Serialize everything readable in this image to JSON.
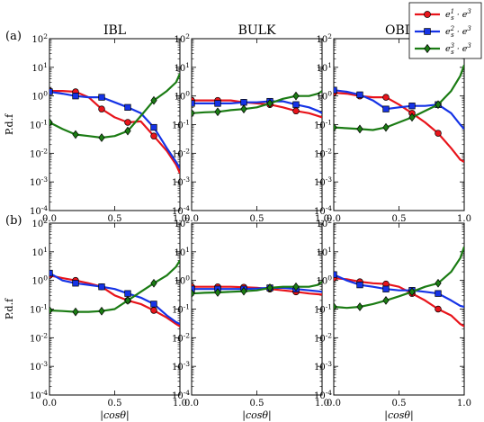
{
  "figure": {
    "row_labels": [
      "(a)",
      "(b)"
    ],
    "xlabel": "|cosθ|",
    "ylabel": "P.d.f",
    "legend": {
      "entries": [
        {
          "label": "e_s^1 · e^3",
          "color": "#e8141b",
          "marker": "circle"
        },
        {
          "label": "e_s^2 · e^3",
          "color": "#1533e6",
          "marker": "square"
        },
        {
          "label": "e_s^3 · e^3",
          "color": "#1b7c14",
          "marker": "diamond"
        }
      ],
      "position": "top-right"
    },
    "x_ticks": [
      "0.0",
      "0.5",
      "1.0"
    ],
    "y_ticks": [
      "10^-4",
      "10^-3",
      "10^-2",
      "10^-1",
      "10^0",
      "10^1",
      "10^2"
    ]
  },
  "chart_data": [
    {
      "type": "line",
      "row": "(a)",
      "title": "IBL",
      "xlim": [
        0,
        1
      ],
      "ylim": [
        0.0001,
        100
      ],
      "yscale": "log",
      "x": [
        0,
        0.1,
        0.2,
        0.3,
        0.4,
        0.5,
        0.6,
        0.7,
        0.8,
        0.9,
        0.97,
        1.0
      ],
      "series": [
        {
          "name": "e_s^1 · e^3",
          "values": [
            1.5,
            1.5,
            1.4,
            0.9,
            0.35,
            0.18,
            0.12,
            0.13,
            0.04,
            0.012,
            0.004,
            0.002
          ]
        },
        {
          "name": "e_s^2 · e^3",
          "values": [
            1.4,
            1.2,
            1.0,
            0.9,
            0.9,
            0.6,
            0.4,
            0.25,
            0.08,
            0.015,
            0.005,
            0.003
          ]
        },
        {
          "name": "e_s^3 · e^3",
          "values": [
            0.12,
            0.07,
            0.045,
            0.04,
            0.035,
            0.04,
            0.06,
            0.2,
            0.7,
            1.5,
            3,
            6
          ]
        }
      ]
    },
    {
      "type": "line",
      "row": "(a)",
      "title": "BULK",
      "xlim": [
        0,
        1
      ],
      "ylim": [
        0.0001,
        100
      ],
      "yscale": "log",
      "x": [
        0,
        0.1,
        0.2,
        0.3,
        0.4,
        0.5,
        0.6,
        0.7,
        0.8,
        0.9,
        0.97,
        1.0
      ],
      "series": [
        {
          "name": "e_s^1 · e^3",
          "values": [
            0.7,
            0.7,
            0.7,
            0.7,
            0.6,
            0.55,
            0.5,
            0.4,
            0.3,
            0.25,
            0.2,
            0.18
          ]
        },
        {
          "name": "e_s^2 · e^3",
          "values": [
            0.55,
            0.55,
            0.55,
            0.55,
            0.6,
            0.6,
            0.65,
            0.65,
            0.5,
            0.4,
            0.3,
            0.25
          ]
        },
        {
          "name": "e_s^3 · e^3",
          "values": [
            0.25,
            0.27,
            0.28,
            0.32,
            0.35,
            0.4,
            0.55,
            0.8,
            1.0,
            1.0,
            1.2,
            1.5
          ]
        }
      ]
    },
    {
      "type": "line",
      "row": "(a)",
      "title": "OBL",
      "xlim": [
        0,
        1
      ],
      "ylim": [
        0.0001,
        100
      ],
      "yscale": "log",
      "x": [
        0,
        0.1,
        0.2,
        0.3,
        0.4,
        0.5,
        0.6,
        0.7,
        0.8,
        0.9,
        0.97,
        1.0
      ],
      "series": [
        {
          "name": "e_s^1 · e^3",
          "values": [
            1.3,
            1.2,
            1.0,
            0.9,
            0.9,
            0.5,
            0.25,
            0.12,
            0.05,
            0.015,
            0.006,
            0.005
          ]
        },
        {
          "name": "e_s^2 · e^3",
          "values": [
            1.6,
            1.4,
            1.1,
            0.7,
            0.35,
            0.4,
            0.45,
            0.45,
            0.5,
            0.25,
            0.1,
            0.07
          ]
        },
        {
          "name": "e_s^3 · e^3",
          "values": [
            0.08,
            0.075,
            0.07,
            0.065,
            0.08,
            0.12,
            0.18,
            0.3,
            0.5,
            1.5,
            5,
            12
          ]
        }
      ]
    },
    {
      "type": "line",
      "row": "(b)",
      "title": "",
      "xlim": [
        0,
        1
      ],
      "ylim": [
        0.0001,
        100
      ],
      "yscale": "log",
      "x": [
        0,
        0.1,
        0.2,
        0.3,
        0.4,
        0.5,
        0.6,
        0.7,
        0.8,
        0.9,
        0.97,
        1.0
      ],
      "series": [
        {
          "name": "e_s^1 · e^3",
          "values": [
            1.5,
            1.2,
            1.0,
            0.8,
            0.6,
            0.3,
            0.2,
            0.15,
            0.09,
            0.05,
            0.03,
            0.025
          ]
        },
        {
          "name": "e_s^2 · e^3",
          "values": [
            1.8,
            1.0,
            0.8,
            0.7,
            0.6,
            0.5,
            0.35,
            0.25,
            0.15,
            0.06,
            0.035,
            0.03
          ]
        },
        {
          "name": "e_s^3 · e^3",
          "values": [
            0.09,
            0.085,
            0.08,
            0.08,
            0.085,
            0.1,
            0.2,
            0.4,
            0.8,
            1.5,
            3,
            5
          ]
        }
      ]
    },
    {
      "type": "line",
      "row": "(b)",
      "title": "",
      "xlim": [
        0,
        1
      ],
      "ylim": [
        0.0001,
        100
      ],
      "yscale": "log",
      "x": [
        0,
        0.1,
        0.2,
        0.3,
        0.4,
        0.5,
        0.6,
        0.7,
        0.8,
        0.9,
        0.97,
        1.0
      ],
      "series": [
        {
          "name": "e_s^1 · e^3",
          "values": [
            0.6,
            0.6,
            0.6,
            0.6,
            0.58,
            0.55,
            0.5,
            0.45,
            0.4,
            0.35,
            0.33,
            0.32
          ]
        },
        {
          "name": "e_s^2 · e^3",
          "values": [
            0.5,
            0.5,
            0.5,
            0.5,
            0.5,
            0.52,
            0.55,
            0.55,
            0.5,
            0.45,
            0.42,
            0.4
          ]
        },
        {
          "name": "e_s^3 · e^3",
          "values": [
            0.35,
            0.37,
            0.38,
            0.4,
            0.42,
            0.45,
            0.55,
            0.6,
            0.6,
            0.6,
            0.7,
            0.9
          ]
        }
      ]
    },
    {
      "type": "line",
      "row": "(b)",
      "title": "",
      "xlim": [
        0,
        1
      ],
      "ylim": [
        0.0001,
        100
      ],
      "yscale": "log",
      "x": [
        0,
        0.1,
        0.2,
        0.3,
        0.4,
        0.5,
        0.6,
        0.7,
        0.8,
        0.9,
        0.97,
        1.0
      ],
      "series": [
        {
          "name": "e_s^1 · e^3",
          "values": [
            1.2,
            1.1,
            0.9,
            0.8,
            0.75,
            0.6,
            0.35,
            0.2,
            0.1,
            0.06,
            0.03,
            0.025
          ]
        },
        {
          "name": "e_s^2 · e^3",
          "values": [
            1.6,
            1.0,
            0.7,
            0.6,
            0.5,
            0.45,
            0.45,
            0.4,
            0.35,
            0.2,
            0.13,
            0.12
          ]
        },
        {
          "name": "e_s^3 · e^3",
          "values": [
            0.12,
            0.11,
            0.12,
            0.15,
            0.2,
            0.28,
            0.4,
            0.6,
            0.8,
            2,
            6,
            15
          ]
        }
      ]
    }
  ]
}
